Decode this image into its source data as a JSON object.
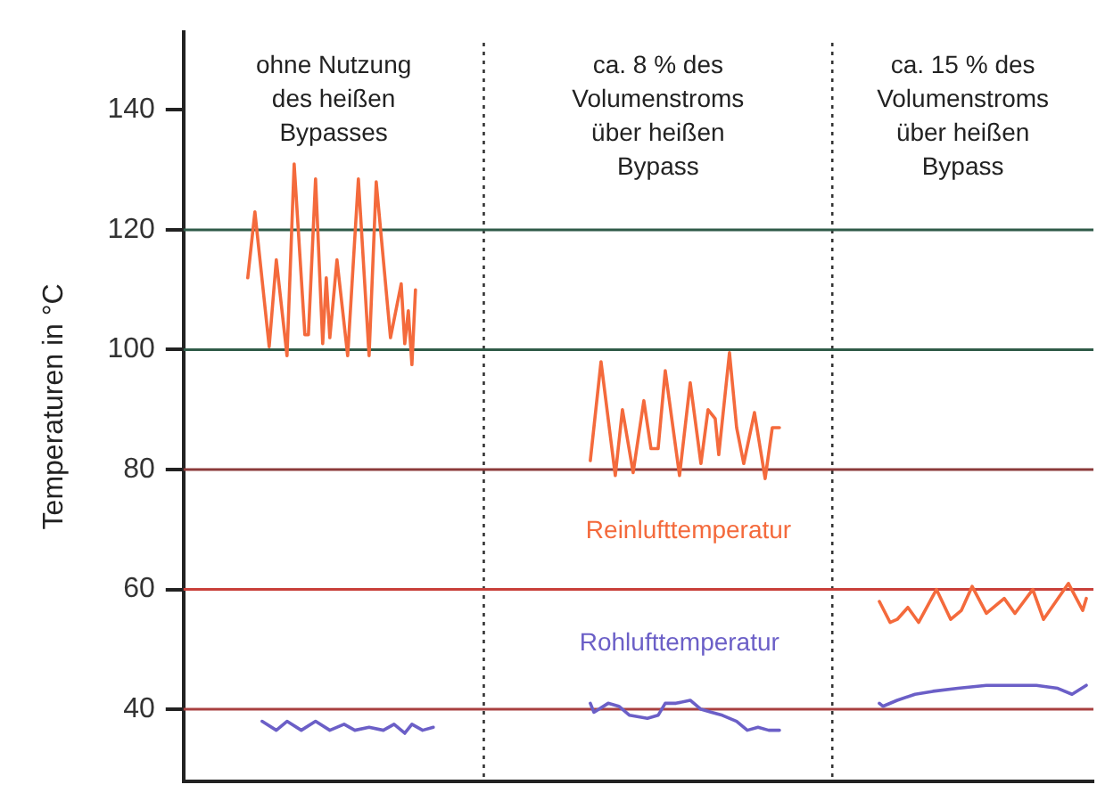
{
  "chart_data": {
    "type": "line",
    "ylabel": "Temperaturen in °C",
    "ylim": [
      28,
      153
    ],
    "yticks": [
      40,
      60,
      80,
      100,
      120,
      140
    ],
    "tick_labels": "y",
    "grid": false,
    "legend": false,
    "marker": "none",
    "line_style": "solid",
    "categories": [
      null,
      null,
      null,
      null,
      null,
      null,
      null,
      null,
      null,
      null,
      null,
      null,
      null,
      null,
      null,
      null,
      null,
      null,
      null,
      null,
      null,
      null,
      null,
      null,
      null,
      null,
      null,
      null,
      null,
      null,
      null,
      null,
      null,
      null,
      null,
      null,
      null,
      null,
      null,
      null,
      null,
      null,
      null,
      null,
      null,
      null,
      null,
      null,
      null,
      null,
      null,
      null,
      null,
      null,
      null,
      null,
      null,
      null,
      null,
      null,
      null,
      null,
      null,
      null,
      null,
      null,
      null,
      null,
      null,
      null,
      null,
      null,
      null,
      null,
      null,
      null,
      null,
      null,
      null,
      null,
      null,
      null,
      null,
      null,
      null,
      null,
      null,
      null,
      null,
      null,
      null,
      null,
      null,
      null,
      null,
      null,
      null,
      null,
      null,
      null,
      null,
      null,
      null,
      null,
      null,
      null,
      null,
      null,
      null,
      null,
      null,
      null,
      null,
      null,
      null,
      null,
      null,
      null,
      null,
      null,
      null,
      null,
      null,
      null,
      null,
      null,
      null,
      null,
      null,
      null,
      null,
      null,
      null,
      null,
      null,
      null,
      null,
      null,
      null,
      null,
      null,
      null,
      null,
      null,
      null,
      null,
      null,
      null,
      null,
      null,
      null,
      null,
      null,
      null,
      null,
      null,
      null,
      null,
      null,
      null,
      null,
      null,
      null,
      null,
      null,
      null,
      null,
      null,
      null,
      null,
      null,
      null,
      null,
      null,
      null,
      null,
      null,
      null,
      null,
      null,
      null,
      null,
      null,
      null,
      null,
      null,
      null,
      null,
      null,
      null,
      null,
      null,
      null,
      null,
      null,
      null,
      null,
      null,
      null,
      null,
      null,
      null,
      null,
      null,
      null,
      null,
      null,
      null,
      null,
      null,
      null,
      null,
      null,
      null,
      null,
      null,
      null,
      null,
      null,
      null,
      null,
      null,
      null,
      null,
      null,
      null,
      null,
      null,
      null,
      null,
      null,
      null,
      null,
      null,
      null,
      null,
      null,
      null,
      null,
      null,
      null,
      null,
      null,
      null,
      null,
      null,
      null,
      null,
      null,
      null,
      null,
      null,
      null,
      null,
      null,
      null
    ],
    "annotations": [
      "ohne Nutzung\ndes heißen\nBypasses",
      "ca. 8 % des\nVolumenstroms\nüber heißen\nBypass",
      "ca. 15 % des\nVolumenstroms\nüber heißen\nBypass"
    ],
    "ref_lines": [
      {
        "axis": "y",
        "value": 120,
        "color": "#2f5a48",
        "line_style": "solid"
      },
      {
        "axis": "y",
        "value": 100,
        "color": "#2f5a48",
        "line_style": "solid"
      },
      {
        "axis": "y",
        "value": 80,
        "color": "#8b3a3a",
        "line_style": "solid"
      },
      {
        "axis": "y",
        "value": 60,
        "color": "#c8403a",
        "line_style": "solid"
      },
      {
        "axis": "y",
        "value": 40,
        "color": "#a84040",
        "line_style": "solid"
      }
    ],
    "series": [
      {
        "color": "#f46a3c",
        "values": [
          null,
          null,
          null,
          null,
          null,
          null,
          null,
          null,
          null,
          null,
          null,
          null,
          null,
          null,
          null,
          null,
          null,
          null,
          112,
          null,
          123,
          null,
          null,
          null,
          100.5,
          null,
          115,
          null,
          null,
          99,
          null,
          131,
          null,
          null,
          102.5,
          102.5,
          null,
          128.5,
          null,
          101,
          112,
          102,
          null,
          115,
          null,
          null,
          99,
          null,
          null,
          128.5,
          null,
          null,
          99,
          null,
          128,
          null,
          null,
          null,
          102,
          null,
          null,
          111,
          101,
          106.5,
          97.5,
          110,
          null,
          null,
          null,
          null,
          null,
          null,
          null,
          null,
          null,
          null,
          null,
          null,
          null,
          null,
          null,
          null,
          null,
          null,
          null,
          null,
          null,
          null,
          null,
          null,
          null,
          null,
          null,
          null,
          null,
          null,
          null,
          null,
          null,
          null,
          null,
          null,
          null,
          null,
          null,
          null,
          null,
          null,
          null,
          null,
          null,
          null,
          null,
          null,
          null,
          null,
          null,
          null,
          null,
          null,
          null,
          null,
          null,
          null,
          null,
          null,
          null,
          null,
          null,
          null,
          null,
          null,
          null,
          null,
          null,
          null,
          null,
          null,
          null,
          null,
          null,
          null,
          null,
          null,
          null,
          null,
          null,
          null,
          null,
          null,
          null,
          null,
          null,
          null,
          null,
          null,
          null,
          null,
          null,
          null,
          null,
          null,
          null,
          null,
          null,
          null,
          null,
          null,
          null,
          null,
          null,
          null,
          null,
          null,
          null,
          null,
          null,
          null,
          null,
          null,
          null,
          null,
          null,
          null,
          null,
          null,
          null,
          null,
          null,
          null,
          null,
          null,
          null,
          null,
          null,
          null,
          null,
          null,
          null,
          null,
          null,
          null,
          null,
          null,
          null,
          null,
          null,
          null,
          null,
          null,
          null,
          null,
          null,
          null,
          null,
          null,
          null,
          null,
          null,
          null,
          null,
          null,
          null,
          null,
          null,
          null,
          null,
          null,
          null,
          null,
          null,
          null,
          null,
          null,
          null,
          null,
          null,
          null,
          null,
          null,
          null,
          null,
          null,
          null,
          null,
          null,
          null,
          null,
          null,
          null,
          null,
          null,
          null,
          null,
          null,
          null
        ]
      },
      {
        "name": "Reinlufttemperatur",
        "color": "#f46a3c",
        "values": [
          null,
          null,
          null,
          null,
          null,
          null,
          null,
          null,
          null,
          null,
          null,
          null,
          null,
          null,
          null,
          null,
          null,
          null,
          null,
          null,
          null,
          null,
          null,
          null,
          null,
          null,
          null,
          null,
          null,
          null,
          null,
          null,
          null,
          null,
          null,
          null,
          null,
          null,
          null,
          null,
          null,
          null,
          null,
          null,
          null,
          null,
          null,
          null,
          null,
          null,
          null,
          null,
          null,
          null,
          null,
          null,
          null,
          null,
          null,
          null,
          null,
          null,
          null,
          null,
          null,
          null,
          null,
          null,
          null,
          null,
          null,
          null,
          null,
          null,
          null,
          null,
          null,
          null,
          null,
          null,
          null,
          null,
          null,
          null,
          null,
          null,
          null,
          null,
          null,
          null,
          null,
          null,
          null,
          null,
          null,
          null,
          null,
          null,
          null,
          null,
          null,
          null,
          null,
          null,
          null,
          null,
          null,
          null,
          null,
          null,
          null,
          null,
          null,
          null,
          81.5,
          null,
          null,
          98,
          null,
          null,
          null,
          79,
          null,
          90,
          null,
          null,
          79.5,
          null,
          null,
          91.5,
          null,
          83.5,
          null,
          83.5,
          null,
          96.5,
          null,
          null,
          null,
          79,
          null,
          null,
          94.5,
          null,
          null,
          81,
          null,
          90,
          null,
          88.5,
          82.5,
          null,
          null,
          99.5,
          null,
          87,
          null,
          81,
          null,
          null,
          89.5,
          null,
          null,
          78.5,
          null,
          87,
          null,
          87,
          null,
          null,
          null,
          null,
          null,
          null,
          null,
          null,
          null,
          null,
          null,
          null,
          null,
          null,
          null,
          null,
          null,
          null,
          null,
          null,
          null,
          null,
          null,
          null,
          null,
          null,
          null,
          null,
          null,
          null,
          null,
          null,
          null,
          null,
          null,
          null,
          null,
          null,
          null,
          null,
          null,
          null,
          null,
          null,
          null,
          null,
          null,
          null,
          null,
          null,
          null,
          null,
          null,
          null,
          null,
          null,
          null,
          null,
          null,
          null,
          null,
          null,
          null,
          null,
          null,
          null,
          null,
          null,
          null,
          null,
          null,
          null,
          null,
          null,
          null,
          null,
          null,
          null,
          null,
          null,
          null,
          null,
          null,
          null,
          null,
          null,
          null,
          null
        ]
      },
      {
        "color": "#f46a3c",
        "values": [
          null,
          null,
          null,
          null,
          null,
          null,
          null,
          null,
          null,
          null,
          null,
          null,
          null,
          null,
          null,
          null,
          null,
          null,
          null,
          null,
          null,
          null,
          null,
          null,
          null,
          null,
          null,
          null,
          null,
          null,
          null,
          null,
          null,
          null,
          null,
          null,
          null,
          null,
          null,
          null,
          null,
          null,
          null,
          null,
          null,
          null,
          null,
          null,
          null,
          null,
          null,
          null,
          null,
          null,
          null,
          null,
          null,
          null,
          null,
          null,
          null,
          null,
          null,
          null,
          null,
          null,
          null,
          null,
          null,
          null,
          null,
          null,
          null,
          null,
          null,
          null,
          null,
          null,
          null,
          null,
          null,
          null,
          null,
          null,
          null,
          null,
          null,
          null,
          null,
          null,
          null,
          null,
          null,
          null,
          null,
          null,
          null,
          null,
          null,
          null,
          null,
          null,
          null,
          null,
          null,
          null,
          null,
          null,
          null,
          null,
          null,
          null,
          null,
          null,
          null,
          null,
          null,
          null,
          null,
          null,
          null,
          null,
          null,
          null,
          null,
          null,
          null,
          null,
          null,
          null,
          null,
          null,
          null,
          null,
          null,
          null,
          null,
          null,
          null,
          null,
          null,
          null,
          null,
          null,
          null,
          null,
          null,
          null,
          null,
          null,
          null,
          null,
          null,
          null,
          null,
          null,
          null,
          null,
          null,
          null,
          null,
          null,
          null,
          null,
          null,
          null,
          null,
          null,
          null,
          null,
          null,
          null,
          null,
          null,
          null,
          null,
          null,
          null,
          null,
          null,
          null,
          null,
          null,
          null,
          null,
          null,
          null,
          null,
          null,
          null,
          null,
          null,
          null,
          null,
          null,
          58,
          null,
          null,
          54.5,
          null,
          55,
          null,
          null,
          57,
          null,
          null,
          54.5,
          null,
          null,
          null,
          null,
          60,
          null,
          null,
          null,
          55,
          null,
          null,
          56.5,
          null,
          null,
          60.5,
          null,
          null,
          null,
          56,
          null,
          null,
          null,
          null,
          58.5,
          null,
          null,
          56,
          null,
          null,
          null,
          null,
          60,
          null,
          null,
          55,
          null,
          null,
          null,
          null,
          null,
          null,
          61,
          null,
          null,
          null,
          56.5,
          58.5,
          null,
          null
        ]
      },
      {
        "color": "#6b5fc7",
        "values": [
          null,
          null,
          null,
          null,
          null,
          null,
          null,
          null,
          null,
          null,
          null,
          null,
          null,
          null,
          null,
          null,
          null,
          null,
          null,
          null,
          null,
          null,
          38,
          null,
          null,
          null,
          36.5,
          null,
          null,
          38,
          null,
          null,
          null,
          36.5,
          null,
          null,
          null,
          38,
          null,
          null,
          null,
          36.5,
          null,
          null,
          null,
          37.5,
          null,
          null,
          36.5,
          null,
          null,
          null,
          37,
          null,
          null,
          null,
          36.5,
          null,
          null,
          37.5,
          null,
          null,
          36,
          null,
          37.5,
          null,
          null,
          36.5,
          null,
          null,
          37,
          null,
          null,
          null,
          null,
          null,
          null,
          null,
          null,
          null,
          null,
          null,
          null,
          null,
          null,
          null,
          null,
          null,
          null,
          null,
          null,
          null,
          null,
          null,
          null,
          null,
          null,
          null,
          null,
          null,
          null,
          null,
          null,
          null,
          null,
          null,
          null,
          null,
          null,
          null,
          null,
          null,
          null,
          null,
          null,
          null,
          null,
          null,
          null,
          null,
          null,
          null,
          null,
          null,
          null,
          null,
          null,
          null,
          null,
          null,
          null,
          null,
          null,
          null,
          null,
          null,
          null,
          null,
          null,
          null,
          null,
          null,
          null,
          null,
          null,
          null,
          null,
          null,
          null,
          null,
          null,
          null,
          null,
          null,
          null,
          null,
          null,
          null,
          null,
          null,
          null,
          null,
          null,
          null,
          null,
          null,
          null,
          null,
          null,
          null,
          null,
          null,
          null,
          null,
          null,
          null,
          null,
          null,
          null,
          null,
          null,
          null,
          null,
          null,
          null,
          null,
          null,
          null,
          null,
          null,
          null,
          null,
          null,
          null,
          null,
          null,
          null,
          null,
          null,
          null,
          null,
          null,
          null,
          null,
          null,
          null,
          null,
          null,
          null,
          null,
          null,
          null,
          null,
          null,
          null,
          null,
          null,
          null,
          null,
          null,
          null,
          null,
          null,
          null,
          null,
          null,
          null,
          null,
          null,
          null,
          null,
          null,
          null,
          null,
          null,
          null,
          null,
          null,
          null,
          null,
          null,
          null,
          null,
          null,
          null,
          null,
          null,
          null,
          null,
          null,
          null,
          null,
          null,
          null,
          null,
          null
        ]
      },
      {
        "name": "Rohlufttemperatur",
        "color": "#6b5fc7",
        "values": [
          null,
          null,
          null,
          null,
          null,
          null,
          null,
          null,
          null,
          null,
          null,
          null,
          null,
          null,
          null,
          null,
          null,
          null,
          null,
          null,
          null,
          null,
          null,
          null,
          null,
          null,
          null,
          null,
          null,
          null,
          null,
          null,
          null,
          null,
          null,
          null,
          null,
          null,
          null,
          null,
          null,
          null,
          null,
          null,
          null,
          null,
          null,
          null,
          null,
          null,
          null,
          null,
          null,
          null,
          null,
          null,
          null,
          null,
          null,
          null,
          null,
          null,
          null,
          null,
          null,
          null,
          null,
          null,
          null,
          null,
          null,
          null,
          null,
          null,
          null,
          null,
          null,
          null,
          null,
          null,
          null,
          null,
          null,
          null,
          null,
          null,
          null,
          null,
          null,
          null,
          null,
          null,
          null,
          null,
          null,
          null,
          null,
          null,
          null,
          null,
          null,
          null,
          null,
          null,
          null,
          null,
          null,
          null,
          null,
          null,
          null,
          null,
          null,
          null,
          41,
          39.5,
          null,
          null,
          null,
          41,
          null,
          null,
          40.5,
          null,
          null,
          39,
          null,
          null,
          null,
          null,
          38.5,
          null,
          null,
          39,
          null,
          41,
          null,
          null,
          41,
          null,
          null,
          null,
          41.5,
          null,
          null,
          40,
          null,
          null,
          39.5,
          null,
          null,
          39,
          null,
          null,
          null,
          38,
          null,
          null,
          36.5,
          null,
          null,
          37,
          null,
          null,
          36.5,
          null,
          null,
          36.5,
          null,
          null,
          null,
          null,
          null,
          null,
          null,
          null,
          null,
          null,
          null,
          null,
          null,
          null,
          null,
          null,
          null,
          null,
          null,
          null,
          null,
          null,
          null,
          null,
          null,
          null,
          null,
          null,
          null,
          null,
          null,
          null,
          null,
          null,
          null,
          null,
          null,
          null,
          null,
          null,
          null,
          null,
          null,
          null,
          null,
          null,
          null,
          null,
          null,
          null,
          null,
          null,
          null,
          null,
          null,
          null,
          null,
          null,
          null,
          null,
          null,
          null,
          null,
          null,
          null,
          null,
          null,
          null,
          null,
          null,
          null,
          null,
          null,
          null,
          null,
          null,
          null,
          null,
          null,
          null,
          null,
          null,
          null,
          null,
          null,
          null,
          null,
          null
        ]
      },
      {
        "color": "#6b5fc7",
        "values": [
          null,
          null,
          null,
          null,
          null,
          null,
          null,
          null,
          null,
          null,
          null,
          null,
          null,
          null,
          null,
          null,
          null,
          null,
          null,
          null,
          null,
          null,
          null,
          null,
          null,
          null,
          null,
          null,
          null,
          null,
          null,
          null,
          null,
          null,
          null,
          null,
          null,
          null,
          null,
          null,
          null,
          null,
          null,
          null,
          null,
          null,
          null,
          null,
          null,
          null,
          null,
          null,
          null,
          null,
          null,
          null,
          null,
          null,
          null,
          null,
          null,
          null,
          null,
          null,
          null,
          null,
          null,
          null,
          null,
          null,
          null,
          null,
          null,
          null,
          null,
          null,
          null,
          null,
          null,
          null,
          null,
          null,
          null,
          null,
          null,
          null,
          null,
          null,
          null,
          null,
          null,
          null,
          null,
          null,
          null,
          null,
          null,
          null,
          null,
          null,
          null,
          null,
          null,
          null,
          null,
          null,
          null,
          null,
          null,
          null,
          null,
          null,
          null,
          null,
          null,
          null,
          null,
          null,
          null,
          null,
          null,
          null,
          null,
          null,
          null,
          null,
          null,
          null,
          null,
          null,
          null,
          null,
          null,
          null,
          null,
          null,
          null,
          null,
          null,
          null,
          null,
          null,
          null,
          null,
          null,
          null,
          null,
          null,
          null,
          null,
          null,
          null,
          null,
          null,
          null,
          null,
          null,
          null,
          null,
          null,
          null,
          null,
          null,
          null,
          null,
          null,
          null,
          null,
          null,
          null,
          null,
          null,
          null,
          null,
          null,
          null,
          null,
          null,
          null,
          null,
          null,
          null,
          null,
          null,
          null,
          null,
          null,
          null,
          null,
          null,
          null,
          null,
          null,
          null,
          null,
          41,
          40.5,
          null,
          null,
          null,
          41.5,
          null,
          null,
          null,
          null,
          42.5,
          null,
          null,
          null,
          null,
          43,
          null,
          null,
          null,
          null,
          null,
          null,
          43.5,
          null,
          null,
          null,
          null,
          null,
          null,
          null,
          44,
          null,
          null,
          null,
          null,
          null,
          null,
          null,
          null,
          44,
          null,
          null,
          null,
          null,
          44,
          null,
          null,
          null,
          null,
          null,
          43.5,
          null,
          null,
          null,
          42.5,
          null,
          null,
          null,
          44,
          null,
          null
        ]
      }
    ]
  }
}
